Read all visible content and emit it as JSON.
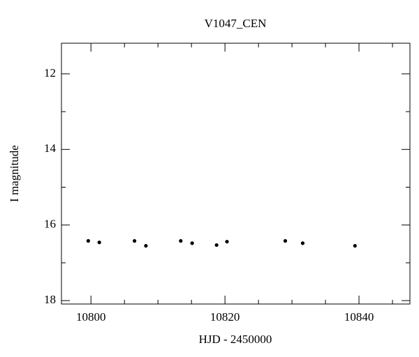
{
  "chart_data": {
    "type": "scatter",
    "title": "V1047_CEN",
    "x_label": "HJD - 2450000",
    "y_label": "I magnitude",
    "x": [
      10799.6,
      10801.25,
      10806.5,
      10808.2,
      10813.4,
      10815.1,
      10818.75,
      10820.3,
      10829.0,
      10831.6,
      10839.4
    ],
    "values": [
      16.42,
      16.46,
      16.42,
      16.55,
      16.42,
      16.48,
      16.53,
      16.44,
      16.42,
      16.48,
      16.55
    ],
    "color": "#000000",
    "xlim": [
      10795.6,
      10847.6
    ],
    "xticks": [
      10800,
      10820,
      10840
    ],
    "xminor": [
      10805,
      10810,
      10815,
      10825,
      10830,
      10835,
      10845
    ],
    "ylim": [
      11.19,
      18.09
    ],
    "yticks": [
      12,
      14,
      16,
      18
    ],
    "yminor": [
      13,
      15,
      17
    ],
    "y_inverted": true
  }
}
